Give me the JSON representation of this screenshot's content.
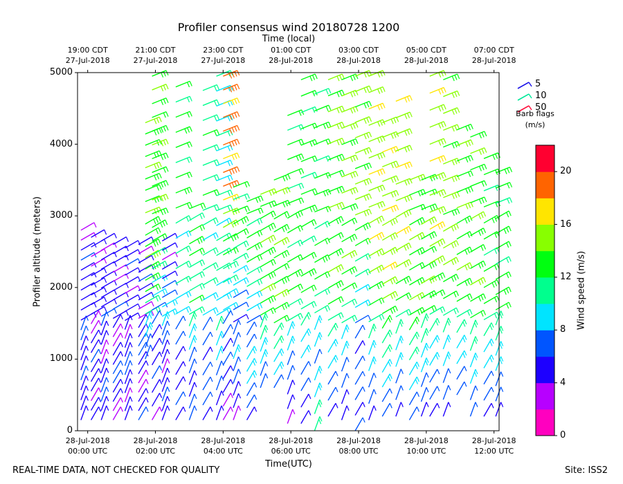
{
  "chart_data": {
    "type": "wind-barb profile",
    "title": "Profiler consensus wind 20180728 1200",
    "xlabel_bottom": "Time(UTC)",
    "xlabel_top": "Time (local)",
    "ylabel": "Profiler altitude (meters)",
    "ylim": [
      0,
      5000
    ],
    "y_ticks": [
      "0",
      "1000",
      "2000",
      "3000",
      "4000",
      "5000"
    ],
    "x_range_hours_utc": [
      -0.3,
      12.15
    ],
    "bottom_ticks": [
      {
        "hour": 0,
        "line1": "28-Jul-2018",
        "line2": "00:00 UTC"
      },
      {
        "hour": 2,
        "line1": "28-Jul-2018",
        "line2": "02:00 UTC"
      },
      {
        "hour": 4,
        "line1": "28-Jul-2018",
        "line2": "04:00 UTC"
      },
      {
        "hour": 6,
        "line1": "28-Jul-2018",
        "line2": "06:00 UTC"
      },
      {
        "hour": 8,
        "line1": "28-Jul-2018",
        "line2": "08:00 UTC"
      },
      {
        "hour": 10,
        "line1": "28-Jul-2018",
        "line2": "10:00 UTC"
      },
      {
        "hour": 12,
        "line1": "28-Jul-2018",
        "line2": "12:00 UTC"
      }
    ],
    "top_ticks": [
      {
        "hour": 0,
        "line1": "19:00 CDT",
        "line2": "27-Jul-2018"
      },
      {
        "hour": 2,
        "line1": "21:00 CDT",
        "line2": "27-Jul-2018"
      },
      {
        "hour": 4,
        "line1": "23:00 CDT",
        "line2": "27-Jul-2018"
      },
      {
        "hour": 6,
        "line1": "01:00 CDT",
        "line2": "28-Jul-2018"
      },
      {
        "hour": 8,
        "line1": "03:00 CDT",
        "line2": "28-Jul-2018"
      },
      {
        "hour": 10,
        "line1": "05:00 CDT",
        "line2": "28-Jul-2018"
      },
      {
        "hour": 12,
        "line1": "07:00 CDT",
        "line2": "28-Jul-2018"
      }
    ],
    "legend": {
      "placement": "right",
      "items": [
        {
          "label": "5",
          "color": "#1a12e8"
        },
        {
          "label": "10",
          "color": "#00e89a"
        },
        {
          "label": "50",
          "color": "#ff0d3a"
        }
      ],
      "title_line1": "Barb flags",
      "title_line2": "(m/s)"
    },
    "colorbar": {
      "label": "Wind speed (m/s)",
      "range": [
        0,
        22
      ],
      "ticks": [
        "0",
        "4",
        "8",
        "12",
        "16",
        "20"
      ],
      "bands": [
        "#ff00bf",
        "#b700ff",
        "#1d00ff",
        "#0055ff",
        "#00e4ff",
        "#00ff8e",
        "#00ff10",
        "#88ff00",
        "#ffe500",
        "#ff6400",
        "#ff0030"
      ]
    },
    "columns": [
      {
        "t": -0.2,
        "bot": 150,
        "top": 2800,
        "speeds": [
          4,
          4,
          5,
          5,
          6,
          5,
          4,
          5,
          6,
          6,
          5,
          5,
          4,
          4,
          5,
          5,
          6,
          5,
          3,
          3
        ]
      },
      {
        "t": 0.1,
        "bot": 150,
        "top": 2700,
        "speeds": [
          5,
          4,
          3,
          4,
          5,
          5,
          6,
          5,
          4,
          3,
          3,
          4,
          5,
          5,
          4,
          4,
          3,
          3,
          5,
          5
        ]
      },
      {
        "t": 0.4,
        "bot": 150,
        "top": 2650,
        "speeds": [
          4,
          5,
          6,
          6,
          5,
          4,
          3,
          3,
          4,
          5,
          6,
          6,
          5,
          4,
          4,
          5,
          5,
          4,
          3,
          4
        ]
      },
      {
        "t": 0.75,
        "bot": 150,
        "top": 2600,
        "speeds": [
          3,
          3,
          4,
          5,
          6,
          6,
          5,
          4,
          3,
          3,
          4,
          5,
          6,
          5,
          4,
          3,
          3,
          4,
          5,
          5
        ]
      },
      {
        "t": 1.1,
        "bot": 150,
        "top": 2550,
        "speeds": [
          5,
          4,
          3,
          4,
          5,
          6,
          6,
          5,
          4,
          3,
          4,
          5,
          5,
          4,
          3,
          4,
          5,
          6,
          5,
          4
        ]
      },
      {
        "t": 1.5,
        "bot": 150,
        "top": 2600,
        "speeds": [
          6,
          5,
          4,
          3,
          3,
          4,
          5,
          6,
          6,
          5,
          4,
          3,
          3,
          4,
          5,
          6,
          5,
          4,
          3,
          4
        ]
      },
      {
        "t": 1.7,
        "bot": 1000,
        "top": 4300,
        "speeds": [
          6,
          7,
          8,
          9,
          10,
          11,
          12,
          13,
          13,
          14,
          13,
          12,
          13,
          14,
          13,
          12,
          13,
          14,
          13,
          12,
          13,
          14
        ]
      },
      {
        "t": 1.9,
        "bot": 150,
        "top": 4950,
        "speeds": [
          3,
          4,
          5,
          6,
          5,
          4,
          5,
          6,
          7,
          8,
          9,
          10,
          11,
          12,
          13,
          13,
          14,
          13,
          12,
          13,
          14,
          13,
          12,
          13,
          14,
          13
        ]
      },
      {
        "t": 2.2,
        "bot": 150,
        "top": 2650,
        "speeds": [
          4,
          5,
          6,
          5,
          4,
          3,
          4,
          5,
          6,
          7,
          8,
          9,
          8,
          7,
          6,
          5,
          4,
          3,
          4,
          5
        ]
      },
      {
        "t": 2.6,
        "bot": 150,
        "top": 4800,
        "speeds": [
          5,
          6,
          5,
          4,
          5,
          6,
          7,
          8,
          9,
          10,
          11,
          10,
          9,
          11,
          12,
          13,
          12,
          11,
          12,
          13,
          12,
          11,
          12
        ]
      },
      {
        "t": 3.0,
        "bot": 150,
        "top": 3100,
        "speeds": [
          6,
          6,
          5,
          5,
          6,
          7,
          8,
          9,
          10,
          11,
          12,
          11,
          10,
          11,
          12,
          13,
          12,
          11,
          12
        ]
      },
      {
        "t": 3.4,
        "bot": 150,
        "top": 4750,
        "speeds": [
          5,
          6,
          7,
          6,
          5,
          6,
          7,
          8,
          9,
          10,
          11,
          10,
          9,
          10,
          11,
          12,
          11,
          10,
          11,
          12,
          11,
          10,
          11
        ]
      },
      {
        "t": 3.8,
        "bot": 150,
        "top": 4950,
        "speeds": [
          4,
          5,
          6,
          7,
          8,
          9,
          10,
          9,
          8,
          9,
          10,
          11,
          10,
          9,
          10,
          11,
          9,
          8,
          9,
          10,
          9,
          8,
          9,
          10
        ]
      },
      {
        "t": 4.0,
        "bot": 150,
        "top": 4950,
        "speeds": [
          2,
          3,
          4,
          5,
          6,
          5,
          6,
          7,
          8,
          9,
          10,
          11,
          12,
          13,
          14,
          15,
          17,
          18,
          18,
          17,
          18,
          19,
          18,
          17,
          18,
          18
        ]
      },
      {
        "t": 4.3,
        "bot": 150,
        "top": 3400,
        "speeds": [
          3,
          4,
          5,
          6,
          7,
          8,
          7,
          6,
          5,
          6,
          7,
          8,
          9,
          10,
          11,
          12,
          13,
          12,
          11,
          12
        ]
      },
      {
        "t": 4.7,
        "bot": 150,
        "top": 3200,
        "speeds": [
          5,
          6,
          7,
          8,
          9,
          8,
          7,
          6,
          7,
          8,
          9,
          10,
          11,
          12,
          13,
          12,
          11,
          12,
          13
        ]
      },
      {
        "t": 5.1,
        "bot": 600,
        "top": 3300,
        "speeds": [
          6,
          7,
          8,
          9,
          10,
          11,
          12,
          13,
          14,
          13,
          12,
          13,
          14,
          13,
          12,
          13,
          14
        ]
      },
      {
        "t": 5.5,
        "bot": 600,
        "top": 3500,
        "speeds": [
          7,
          8,
          9,
          10,
          11,
          12,
          13,
          14,
          13,
          12,
          13,
          14,
          13,
          12,
          13,
          14,
          13
        ]
      },
      {
        "t": 5.9,
        "bot": 100,
        "top": 4400,
        "speeds": [
          3,
          4,
          5,
          6,
          7,
          8,
          9,
          10,
          11,
          12,
          13,
          12,
          11,
          12,
          13,
          12,
          11,
          12,
          13,
          12,
          11,
          12
        ]
      },
      {
        "t": 6.3,
        "bot": 100,
        "top": 4900,
        "speeds": [
          4,
          5,
          6,
          7,
          8,
          9,
          10,
          11,
          12,
          13,
          12,
          11,
          12,
          13,
          12,
          11,
          12,
          13,
          12,
          11,
          12,
          13
        ]
      },
      {
        "t": 6.7,
        "bot": 0,
        "top": 4700,
        "speeds": [
          11,
          10,
          9,
          8,
          7,
          8,
          9,
          10,
          11,
          12,
          13,
          12,
          11,
          12,
          13,
          12,
          11,
          12,
          13,
          12,
          11
        ]
      },
      {
        "t": 7.1,
        "bot": 200,
        "top": 4900,
        "speeds": [
          5,
          6,
          7,
          8,
          9,
          10,
          11,
          12,
          13,
          14,
          13,
          12,
          13,
          14,
          13,
          12,
          13,
          14,
          15,
          14,
          13,
          14
        ]
      },
      {
        "t": 7.5,
        "bot": 150,
        "top": 4900,
        "speeds": [
          4,
          5,
          6,
          7,
          8,
          9,
          10,
          11,
          12,
          13,
          14,
          13,
          12,
          13,
          14,
          15,
          14,
          13,
          14,
          15,
          14,
          13
        ]
      },
      {
        "t": 7.9,
        "bot": 0,
        "top": 4950,
        "speeds": [
          6,
          5,
          6,
          7,
          6,
          5,
          6,
          7,
          8,
          9,
          10,
          11,
          12,
          13,
          14,
          15,
          14,
          13,
          14,
          15,
          14,
          13,
          14,
          15
        ]
      },
      {
        "t": 8.3,
        "bot": 150,
        "top": 4950,
        "speeds": [
          5,
          6,
          7,
          8,
          9,
          10,
          11,
          12,
          13,
          14,
          15,
          16,
          15,
          14,
          15,
          16,
          15,
          14,
          15,
          16,
          15,
          14
        ]
      },
      {
        "t": 8.7,
        "bot": 200,
        "top": 4300,
        "speeds": [
          6,
          7,
          8,
          9,
          10,
          11,
          12,
          13,
          14,
          15,
          16,
          15,
          14,
          15,
          16,
          15,
          14,
          15,
          16,
          15,
          14
        ]
      },
      {
        "t": 9.1,
        "bot": 200,
        "top": 4600,
        "speeds": [
          5,
          6,
          7,
          8,
          9,
          10,
          11,
          12,
          13,
          14,
          15,
          16,
          15,
          14,
          15,
          16,
          15,
          14,
          15,
          16
        ]
      },
      {
        "t": 9.5,
        "bot": 150,
        "top": 3500,
        "speeds": [
          6,
          7,
          8,
          9,
          10,
          11,
          12,
          13,
          14,
          13,
          12,
          13,
          14,
          13,
          12,
          13,
          14
        ]
      },
      {
        "t": 9.85,
        "bot": 200,
        "top": 3500,
        "speeds": [
          5,
          6,
          7,
          8,
          9,
          10,
          11,
          12,
          13,
          14,
          13,
          12,
          13,
          14,
          13,
          12,
          13
        ]
      },
      {
        "t": 10.1,
        "bot": 200,
        "top": 4950,
        "speeds": [
          5,
          6,
          7,
          8,
          9,
          10,
          11,
          12,
          13,
          14,
          15,
          16,
          15,
          14,
          15,
          16,
          15,
          14,
          15,
          16,
          15
        ]
      },
      {
        "t": 10.5,
        "bot": 200,
        "top": 4900,
        "speeds": [
          5,
          6,
          7,
          8,
          9,
          10,
          11,
          12,
          13,
          14,
          15,
          14,
          13,
          14,
          15,
          14,
          13,
          14,
          15,
          14,
          13
        ]
      },
      {
        "t": 10.9,
        "bot": 500,
        "top": 4200,
        "speeds": [
          6,
          7,
          8,
          9,
          10,
          11,
          12,
          13,
          14,
          13,
          12,
          13,
          14,
          13,
          12,
          13,
          14,
          13
        ]
      },
      {
        "t": 11.3,
        "bot": 200,
        "top": 4100,
        "speeds": [
          6,
          7,
          8,
          9,
          10,
          11,
          12,
          13,
          14,
          13,
          12,
          13,
          14,
          13,
          12,
          13,
          14,
          13
        ]
      },
      {
        "t": 11.7,
        "bot": 200,
        "top": 3800,
        "speeds": [
          5,
          6,
          7,
          8,
          9,
          10,
          11,
          12,
          13,
          12,
          11,
          12,
          13,
          12,
          11,
          12,
          13
        ]
      },
      {
        "t": 12.05,
        "bot": 200,
        "top": 3600,
        "speeds": [
          5,
          6,
          7,
          8,
          9,
          10,
          11,
          12,
          13,
          12,
          11,
          12,
          13,
          12,
          11,
          12,
          13
        ]
      }
    ]
  },
  "footer": {
    "left": "REAL-TIME DATA, NOT CHECKED FOR QUALITY",
    "right": "Site: ISS2"
  }
}
